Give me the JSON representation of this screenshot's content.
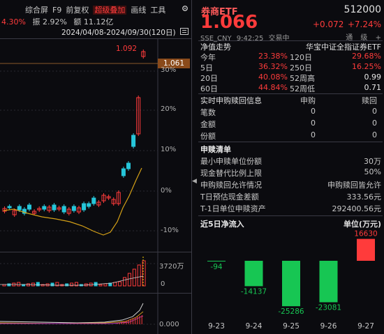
{
  "toolbar": {
    "items": [
      "综合屏",
      "F9",
      "前复权",
      "超级叠加",
      "画线",
      "工具"
    ],
    "active_index": 3,
    "gear_icon": "gear-icon",
    "menu_icon": "menu-icon"
  },
  "stats_line": {
    "change": "4.30%",
    "amplitude": "振 2.92%",
    "amount": "额 11.12亿"
  },
  "date_range": "2024/04/08-2024/09/30(120日)",
  "chart": {
    "high_label": "1.092",
    "price_tag": "1.061",
    "pct_ticks": [
      "30%",
      "20%",
      "10%",
      "0%",
      "-10%"
    ],
    "volume_max": "3720万",
    "volume_zero": "0",
    "indicator_zero": "0.000"
  },
  "quote": {
    "name": "券商ETF",
    "code": "512000",
    "price": "1.066",
    "change": "+0.072",
    "change_pct": "+7.24%",
    "exchange": "SSE_CNY",
    "time": "9:42:25",
    "status": "交易中",
    "links": [
      "通",
      "级",
      "+"
    ]
  },
  "net_value": {
    "title": "净值走势",
    "index_name": "华宝中证全指证券ETF",
    "rows": [
      {
        "k1": "今年",
        "v1": "23.38%",
        "k2": "120日",
        "v2": "29.68%"
      },
      {
        "k1": "5日",
        "v1": "36.32%",
        "k2": "250日",
        "v2": "16.25%"
      },
      {
        "k1": "20日",
        "v1": "40.08%",
        "k2": "52周高",
        "v2": "0.99"
      },
      {
        "k1": "60日",
        "v1": "44.84%",
        "k2": "52周低",
        "v2": "0.71"
      }
    ]
  },
  "subscribe": {
    "title": "实时申购赎回信息",
    "col1": "申购",
    "col2": "赎回",
    "rows": [
      {
        "k": "笔数",
        "a": "0",
        "b": "0"
      },
      {
        "k": "金额",
        "a": "0",
        "b": "0"
      },
      {
        "k": "份额",
        "a": "0",
        "b": "0"
      }
    ]
  },
  "list": {
    "title": "申赎清单",
    "rows": [
      {
        "k": "最小申赎单位份额",
        "v": "30万"
      },
      {
        "k": "现金替代比例上限",
        "v": "50%"
      },
      {
        "k": "申购赎回允许情况",
        "v": "申购赎回皆允许"
      },
      {
        "k": "T日预估现金差额",
        "v": "333.56元"
      },
      {
        "k": "T-1日单位申赎资产",
        "v": "292400.56元"
      }
    ]
  },
  "inflow": {
    "title": "近5日净流入",
    "unit": "单位(万元)",
    "colors": {
      "positive": "#ff3b3b",
      "negative": "#17c653"
    }
  },
  "chart_data": {
    "type": "bar",
    "categories": [
      "9-23",
      "9-24",
      "9-25",
      "9-26",
      "9-27"
    ],
    "values": [
      -94,
      -14137,
      -25286,
      -23081,
      16630
    ],
    "title": "近5日净流入",
    "ylabel": "单位(万元)",
    "ylim": [
      -26000,
      18000
    ]
  }
}
